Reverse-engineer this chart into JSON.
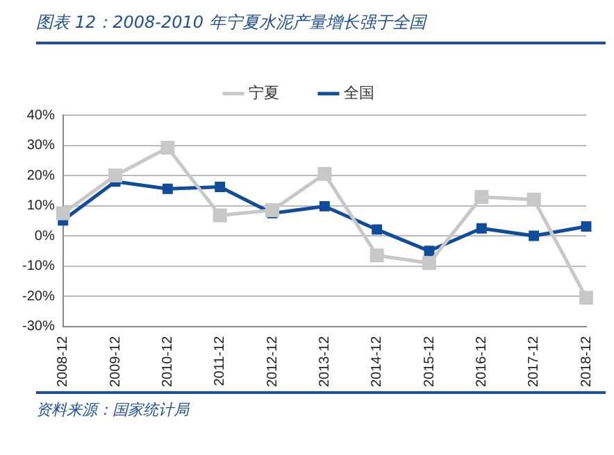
{
  "chart_data": {
    "type": "line",
    "title": "图表 12：2008-2010 年宁夏水泥产量增长强于全国",
    "categories": [
      "2008-12",
      "2009-12",
      "2010-12",
      "2011-12",
      "2012-12",
      "2013-12",
      "2014-12",
      "2015-12",
      "2016-12",
      "2017-12",
      "2018-12"
    ],
    "series": [
      {
        "name": "全国",
        "color": "#0f4c9c",
        "values": [
          5.1,
          18,
          15.6,
          16.2,
          7.5,
          9.8,
          2.1,
          -5,
          2.5,
          0,
          3.1
        ]
      },
      {
        "name": "宁夏",
        "color": "#c8c8c8",
        "values": [
          7.5,
          20,
          29.2,
          6.8,
          8.5,
          20.5,
          -6.5,
          -9,
          12.9,
          12,
          -20.5
        ]
      }
    ],
    "ylim": [
      -30,
      40
    ],
    "yticks": [
      {
        "value": -30,
        "label": "-30%"
      },
      {
        "value": -20,
        "label": "-20%"
      },
      {
        "value": -10,
        "label": "-10%"
      },
      {
        "value": 0,
        "label": "0%"
      },
      {
        "value": 10,
        "label": "10%"
      },
      {
        "value": 20,
        "label": "20%"
      },
      {
        "value": 30,
        "label": "30%"
      },
      {
        "value": 40,
        "label": "40%"
      }
    ],
    "grid": "y",
    "legend": "top",
    "marker": "square",
    "line_style": "solid",
    "annotations": [
      "资料来源：国家统计局"
    ]
  }
}
